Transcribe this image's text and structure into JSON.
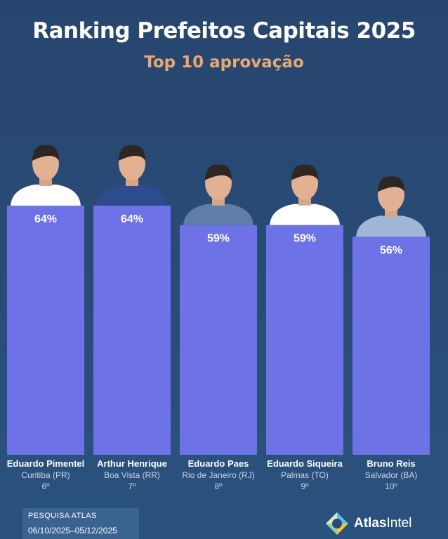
{
  "header": {
    "title": "Ranking Prefeitos Capitais 2025",
    "subtitle": "Top 10 aprovação"
  },
  "colors": {
    "background": "#284a74",
    "bar": "#6d73e6",
    "subtitle": "#e9a873"
  },
  "chart_data": {
    "type": "bar",
    "value_suffix": "%",
    "ylim": [
      0,
      64
    ],
    "categories": [
      "Eduardo Pimentel",
      "Arthur Henrique",
      "Eduardo Paes",
      "Eduardo Siqueira",
      "Bruno Reis"
    ],
    "locations": [
      "Curitiba (PR)",
      "Boa Vista (RR)",
      "Rio de Janeiro (RJ)",
      "Palmas (TO)",
      "Salvador (BA)"
    ],
    "ranks": [
      "6º",
      "7º",
      "8º",
      "9º",
      "10º"
    ],
    "values": [
      64,
      64,
      59,
      59,
      56
    ],
    "value_labels": [
      "64%",
      "64%",
      "59%",
      "59%",
      "56%"
    ]
  },
  "footer": {
    "badge_line1": "PESQUISA ATLAS",
    "badge_line2": "06/10/2025–05/12/2025",
    "brand_bold": "Atlas",
    "brand_light": "Intel",
    "logo_icon": "atlasintel-logo-icon"
  }
}
